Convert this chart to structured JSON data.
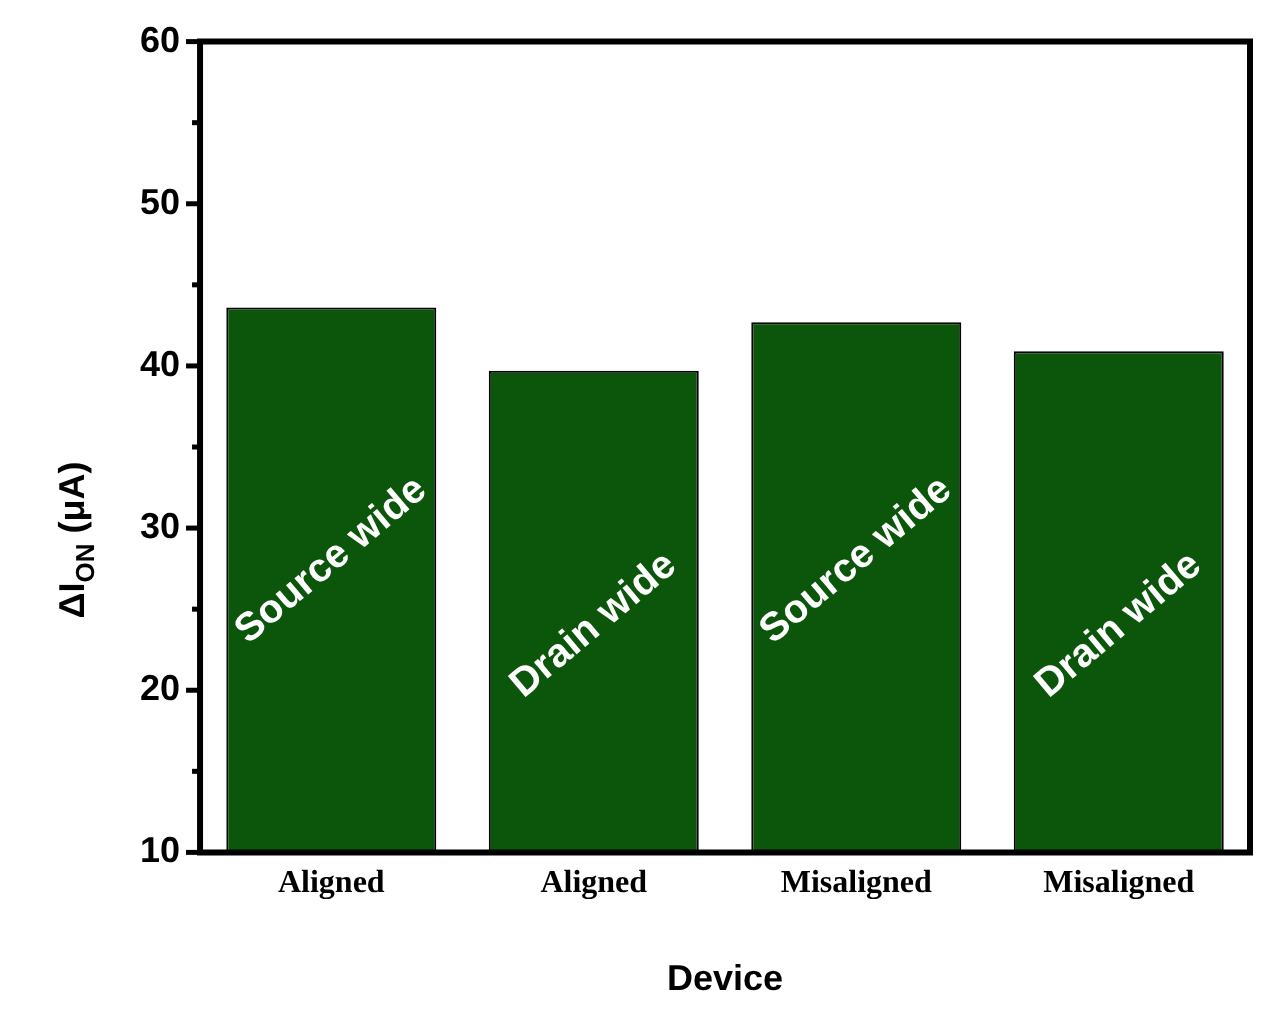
{
  "chart_data": {
    "type": "bar",
    "xlabel": "Device",
    "ylabel": "ΔI$_{ON}$ (μA)",
    "categories": [
      "Aligned",
      "Aligned",
      "Misaligned",
      "Misaligned"
    ],
    "values": [
      43.6,
      39.7,
      42.7,
      40.9
    ],
    "color": "#0b560b",
    "ylim": [
      10,
      60
    ],
    "yticks": [
      10,
      {
        "value": 15,
        "label": null
      },
      20,
      {
        "value": 25,
        "label": null
      },
      30,
      {
        "value": 35,
        "label": null
      },
      40,
      {
        "value": 45,
        "label": null
      },
      50,
      {
        "value": 55,
        "label": null
      },
      60
    ],
    "annotations": [
      "Source wide",
      "Drain wide",
      "Source wide",
      "Drain wide"
    ],
    "grid": false,
    "legend": false
  }
}
